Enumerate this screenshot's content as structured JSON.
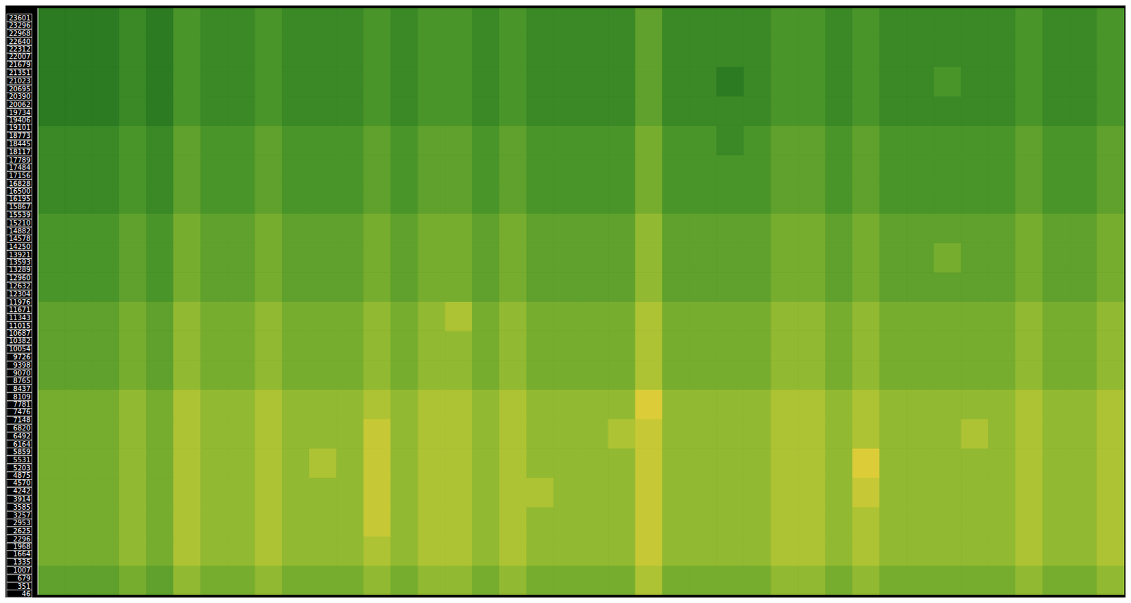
{
  "chart_data": {
    "type": "heatmap",
    "ylim": [
      0,
      24000
    ],
    "yticks": [
      46,
      351,
      679,
      1007,
      1335,
      1664,
      1968,
      2296,
      2625,
      2953,
      3257,
      3585,
      3914,
      4242,
      4570,
      4875,
      5203,
      5531,
      5859,
      6164,
      6492,
      6820,
      7148,
      7476,
      7781,
      8109,
      8437,
      8765,
      9070,
      9398,
      9726,
      10054,
      10382,
      10687,
      11015,
      11343,
      11671,
      11976,
      12304,
      12632,
      12960,
      13289,
      13593,
      13921,
      14250,
      14578,
      14882,
      15210,
      15539,
      15867,
      16195,
      16500,
      16828,
      17156,
      17484,
      17789,
      18117,
      18445,
      18773,
      19101,
      19406,
      19734,
      20062,
      20390,
      20695,
      21023,
      21351,
      21679,
      22007,
      22312,
      22640,
      22968,
      23296,
      23601
    ],
    "tick_labels": "y",
    "y_edges": [
      0,
      1200,
      2400,
      3600,
      4800,
      6000,
      7200,
      8400,
      9600,
      10800,
      12000,
      13200,
      14400,
      15600,
      16800,
      18000,
      19200,
      20400,
      21600,
      22800,
      24000
    ],
    "zlim": [
      0,
      9
    ],
    "cells": [
      [
        4,
        4,
        4,
        5,
        4,
        6,
        5,
        5,
        6,
        5,
        5,
        5,
        6,
        5,
        6,
        6,
        5,
        6,
        5,
        5,
        5,
        5,
        7,
        5,
        5,
        5,
        5,
        6,
        6,
        5,
        6,
        5,
        5,
        5,
        5,
        5,
        6,
        5,
        5,
        6
      ],
      [
        5,
        5,
        5,
        6,
        5,
        7,
        6,
        6,
        7,
        6,
        6,
        6,
        7,
        6,
        7,
        7,
        6,
        7,
        6,
        6,
        6,
        6,
        8,
        6,
        6,
        6,
        6,
        7,
        7,
        6,
        7,
        6,
        6,
        6,
        6,
        6,
        7,
        6,
        6,
        7
      ],
      [
        5,
        5,
        5,
        6,
        5,
        7,
        6,
        6,
        7,
        6,
        6,
        6,
        8,
        6,
        7,
        7,
        6,
        7,
        6,
        6,
        6,
        6,
        8,
        6,
        6,
        6,
        6,
        7,
        7,
        6,
        7,
        6,
        6,
        6,
        6,
        6,
        7,
        6,
        6,
        7
      ],
      [
        5,
        5,
        5,
        6,
        5,
        7,
        6,
        6,
        7,
        6,
        6,
        6,
        8,
        6,
        7,
        7,
        6,
        7,
        7,
        6,
        6,
        6,
        8,
        6,
        6,
        6,
        6,
        7,
        7,
        6,
        8,
        6,
        6,
        6,
        6,
        6,
        7,
        6,
        6,
        7
      ],
      [
        5,
        5,
        5,
        6,
        5,
        7,
        6,
        6,
        7,
        6,
        7,
        6,
        8,
        6,
        7,
        7,
        6,
        7,
        6,
        6,
        6,
        6,
        8,
        6,
        6,
        6,
        6,
        7,
        7,
        6,
        9,
        6,
        6,
        6,
        6,
        6,
        7,
        6,
        6,
        7
      ],
      [
        5,
        5,
        5,
        6,
        5,
        7,
        6,
        6,
        7,
        6,
        6,
        6,
        8,
        6,
        7,
        7,
        6,
        7,
        6,
        6,
        6,
        7,
        8,
        6,
        6,
        6,
        6,
        7,
        7,
        6,
        7,
        6,
        6,
        6,
        7,
        6,
        7,
        6,
        6,
        7
      ],
      [
        5,
        5,
        5,
        6,
        5,
        7,
        6,
        6,
        7,
        6,
        6,
        6,
        7,
        6,
        7,
        7,
        6,
        7,
        6,
        6,
        6,
        6,
        9,
        6,
        6,
        6,
        6,
        7,
        7,
        6,
        7,
        6,
        6,
        6,
        6,
        6,
        7,
        6,
        6,
        7
      ],
      [
        4,
        4,
        4,
        5,
        4,
        6,
        5,
        5,
        6,
        5,
        5,
        5,
        6,
        5,
        6,
        6,
        5,
        6,
        5,
        5,
        5,
        5,
        7,
        5,
        5,
        5,
        5,
        6,
        6,
        5,
        6,
        5,
        5,
        5,
        5,
        5,
        6,
        5,
        5,
        6
      ],
      [
        4,
        4,
        4,
        5,
        4,
        6,
        5,
        5,
        6,
        5,
        5,
        5,
        6,
        5,
        6,
        6,
        5,
        6,
        5,
        5,
        5,
        5,
        7,
        5,
        5,
        5,
        5,
        6,
        6,
        5,
        6,
        5,
        5,
        5,
        5,
        5,
        6,
        5,
        5,
        6
      ],
      [
        4,
        4,
        4,
        5,
        4,
        6,
        5,
        5,
        6,
        5,
        5,
        5,
        6,
        5,
        6,
        7,
        5,
        6,
        5,
        5,
        5,
        5,
        7,
        5,
        5,
        5,
        5,
        6,
        6,
        5,
        6,
        5,
        5,
        5,
        5,
        5,
        6,
        5,
        5,
        6
      ],
      [
        3,
        3,
        3,
        4,
        3,
        5,
        4,
        4,
        5,
        4,
        4,
        4,
        5,
        4,
        5,
        5,
        4,
        5,
        4,
        4,
        4,
        4,
        6,
        4,
        4,
        4,
        4,
        5,
        5,
        4,
        5,
        4,
        4,
        4,
        4,
        4,
        5,
        4,
        4,
        5
      ],
      [
        3,
        3,
        3,
        4,
        3,
        5,
        4,
        4,
        5,
        4,
        4,
        4,
        5,
        4,
        5,
        5,
        4,
        5,
        4,
        4,
        4,
        4,
        6,
        4,
        4,
        4,
        4,
        5,
        5,
        4,
        5,
        4,
        4,
        5,
        4,
        4,
        5,
        4,
        4,
        5
      ],
      [
        3,
        3,
        3,
        4,
        3,
        5,
        4,
        4,
        5,
        4,
        4,
        4,
        5,
        4,
        5,
        5,
        4,
        5,
        4,
        4,
        4,
        4,
        6,
        4,
        4,
        4,
        4,
        5,
        5,
        4,
        5,
        4,
        4,
        4,
        4,
        4,
        5,
        4,
        4,
        5
      ],
      [
        2,
        2,
        2,
        3,
        2,
        4,
        3,
        3,
        4,
        3,
        3,
        3,
        4,
        3,
        4,
        4,
        3,
        4,
        3,
        3,
        3,
        3,
        5,
        3,
        3,
        3,
        3,
        4,
        4,
        3,
        4,
        3,
        3,
        3,
        3,
        3,
        4,
        3,
        3,
        4
      ],
      [
        2,
        2,
        2,
        3,
        2,
        4,
        3,
        3,
        4,
        3,
        3,
        3,
        4,
        3,
        4,
        4,
        3,
        4,
        3,
        3,
        3,
        3,
        5,
        3,
        3,
        3,
        3,
        4,
        4,
        3,
        4,
        3,
        3,
        3,
        3,
        3,
        4,
        3,
        3,
        4
      ],
      [
        2,
        2,
        2,
        3,
        2,
        4,
        3,
        3,
        4,
        3,
        3,
        3,
        4,
        3,
        4,
        4,
        3,
        4,
        3,
        3,
        3,
        3,
        5,
        3,
        3,
        2,
        3,
        4,
        4,
        3,
        4,
        3,
        3,
        3,
        3,
        3,
        4,
        3,
        3,
        4
      ],
      [
        1,
        1,
        1,
        2,
        1,
        3,
        2,
        2,
        3,
        2,
        2,
        2,
        3,
        2,
        3,
        3,
        2,
        3,
        2,
        2,
        2,
        2,
        4,
        2,
        2,
        2,
        2,
        3,
        3,
        2,
        3,
        2,
        2,
        2,
        2,
        2,
        3,
        2,
        2,
        3
      ],
      [
        1,
        1,
        1,
        2,
        1,
        3,
        2,
        2,
        3,
        2,
        2,
        2,
        3,
        2,
        3,
        3,
        2,
        3,
        2,
        2,
        2,
        2,
        4,
        2,
        2,
        1,
        2,
        3,
        3,
        2,
        3,
        2,
        2,
        3,
        2,
        2,
        3,
        2,
        2,
        3
      ],
      [
        1,
        1,
        1,
        2,
        1,
        3,
        2,
        2,
        3,
        2,
        2,
        2,
        3,
        2,
        3,
        3,
        2,
        3,
        2,
        2,
        2,
        2,
        4,
        2,
        2,
        2,
        2,
        3,
        3,
        2,
        3,
        2,
        2,
        2,
        2,
        2,
        3,
        2,
        2,
        3
      ],
      [
        1,
        1,
        1,
        2,
        1,
        3,
        2,
        2,
        3,
        2,
        2,
        2,
        3,
        2,
        3,
        3,
        2,
        3,
        2,
        2,
        2,
        2,
        4,
        2,
        2,
        2,
        2,
        3,
        3,
        2,
        3,
        2,
        2,
        2,
        2,
        2,
        3,
        2,
        2,
        3
      ]
    ]
  }
}
